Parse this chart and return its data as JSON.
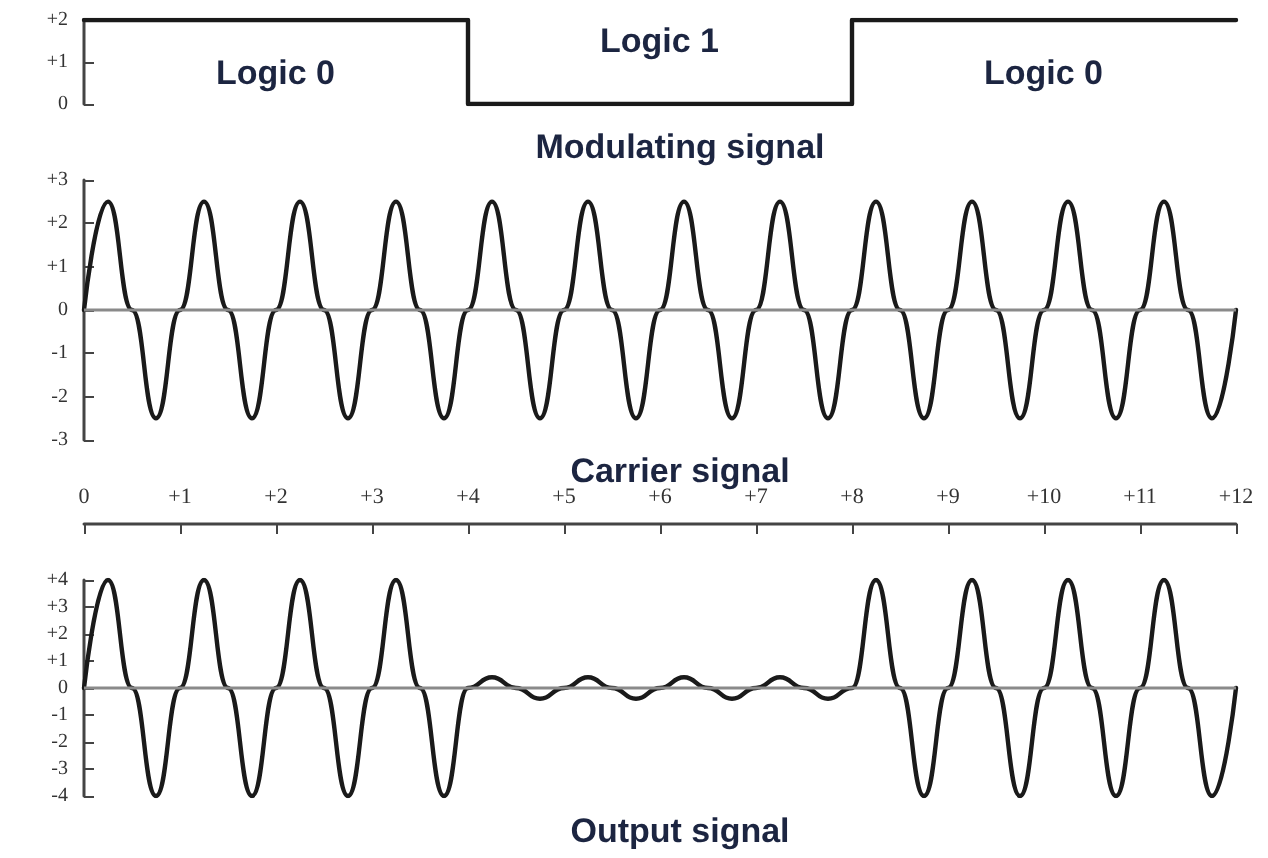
{
  "chart_data": [
    {
      "type": "step",
      "title": "Modulating signal",
      "x": [
        0,
        4,
        8,
        12
      ],
      "values": [
        2,
        0,
        2,
        2
      ],
      "color": "#1a1a1a",
      "xlim": [
        0,
        12
      ],
      "ylim": [
        0,
        2
      ],
      "yticks": [
        0,
        {
          "value": 1,
          "label": "+1"
        },
        {
          "value": 2,
          "label": "+2"
        }
      ],
      "tick_labels": "y",
      "grid": false,
      "marker": "none",
      "line_style": "solid",
      "annotations": [
        "Logic 0",
        "Logic 1",
        "Logic 0"
      ]
    },
    {
      "type": "line",
      "title": "Carrier signal",
      "x": [
        0,
        0.25,
        0.5,
        0.75,
        1,
        1.25,
        1.5,
        1.75,
        2,
        2.25,
        2.5,
        2.75,
        3,
        3.25,
        3.5,
        3.75,
        4,
        4.25,
        4.5,
        4.75,
        5,
        5.25,
        5.5,
        5.75,
        6,
        6.25,
        6.5,
        6.75,
        7,
        7.25,
        7.5,
        7.75,
        8,
        8.25,
        8.5,
        8.75,
        9,
        9.25,
        9.5,
        9.75,
        10,
        10.25,
        10.5,
        10.75,
        11,
        11.25,
        11.5,
        11.75,
        12
      ],
      "values": [
        0,
        2.5,
        0,
        -2.5,
        0,
        2.5,
        0,
        -2.5,
        0,
        2.5,
        0,
        -2.5,
        0,
        2.5,
        0,
        -2.5,
        0,
        2.5,
        0,
        -2.5,
        0,
        2.5,
        0,
        -2.5,
        0,
        2.5,
        0,
        -2.5,
        0,
        2.5,
        0,
        -2.5,
        0,
        2.5,
        0,
        -2.5,
        0,
        2.5,
        0,
        -2.5,
        0,
        2.5,
        0,
        -2.5,
        0,
        2.5,
        0,
        -2.5,
        0
      ],
      "color": "#1a1a1a",
      "xlim": [
        0,
        12
      ],
      "ylim": [
        -3,
        3
      ],
      "yticks": [
        -3,
        -2,
        -1,
        0,
        {
          "value": 1,
          "label": "+1"
        },
        {
          "value": 2,
          "label": "+2"
        },
        {
          "value": 3,
          "label": "+3"
        }
      ],
      "tick_labels": "y",
      "grid": false,
      "marker": "none",
      "line_style": "solid",
      "ref_lines": [
        {
          "axis": "y",
          "value": 0
        }
      ]
    },
    {
      "type": "line",
      "title": "Output signal",
      "x": [
        0,
        0.25,
        0.5,
        0.75,
        1,
        1.25,
        1.5,
        1.75,
        2,
        2.25,
        2.5,
        2.75,
        3,
        3.25,
        3.5,
        3.75,
        4,
        4.25,
        4.5,
        4.75,
        5,
        5.25,
        5.5,
        5.75,
        6,
        6.25,
        6.5,
        6.75,
        7,
        7.25,
        7.5,
        7.75,
        8,
        8.25,
        8.5,
        8.75,
        9,
        9.25,
        9.5,
        9.75,
        10,
        10.25,
        10.5,
        10.75,
        11,
        11.25,
        11.5,
        11.75,
        12
      ],
      "values": [
        0,
        4,
        0,
        -4,
        0,
        4,
        0,
        -4,
        0,
        4,
        0,
        -4,
        0,
        4,
        0,
        -4,
        0,
        0.4,
        0,
        -0.4,
        0,
        0.4,
        0,
        -0.4,
        0,
        0.4,
        0,
        -0.4,
        0,
        0.4,
        0,
        -0.4,
        0,
        4,
        0,
        -4,
        0,
        4,
        0,
        -4,
        0,
        4,
        0,
        -4,
        0,
        4,
        0,
        -4,
        0
      ],
      "color": "#1a1a1a",
      "xlim": [
        0,
        12
      ],
      "xticks": [
        0,
        {
          "value": 1,
          "label": "+1"
        },
        {
          "value": 2,
          "label": "+2"
        },
        {
          "value": 3,
          "label": "+3"
        },
        {
          "value": 4,
          "label": "+4"
        },
        {
          "value": 5,
          "label": "+5"
        },
        {
          "value": 6,
          "label": "+6"
        },
        {
          "value": 7,
          "label": "+7"
        },
        {
          "value": 8,
          "label": "+8"
        },
        {
          "value": 9,
          "label": "+9"
        },
        {
          "value": 10,
          "label": "+10"
        },
        {
          "value": 11,
          "label": "+11"
        },
        {
          "value": 12,
          "label": "+12"
        }
      ],
      "ylim": [
        -4,
        4
      ],
      "yticks": [
        -4,
        -3,
        -2,
        -1,
        0,
        {
          "value": 1,
          "label": "+1"
        },
        {
          "value": 2,
          "label": "+2"
        },
        {
          "value": 3,
          "label": "+3"
        },
        {
          "value": 4,
          "label": "+4"
        }
      ],
      "grid": false,
      "marker": "none",
      "line_style": "solid",
      "ref_lines": [
        {
          "axis": "y",
          "value": 0
        }
      ]
    }
  ]
}
